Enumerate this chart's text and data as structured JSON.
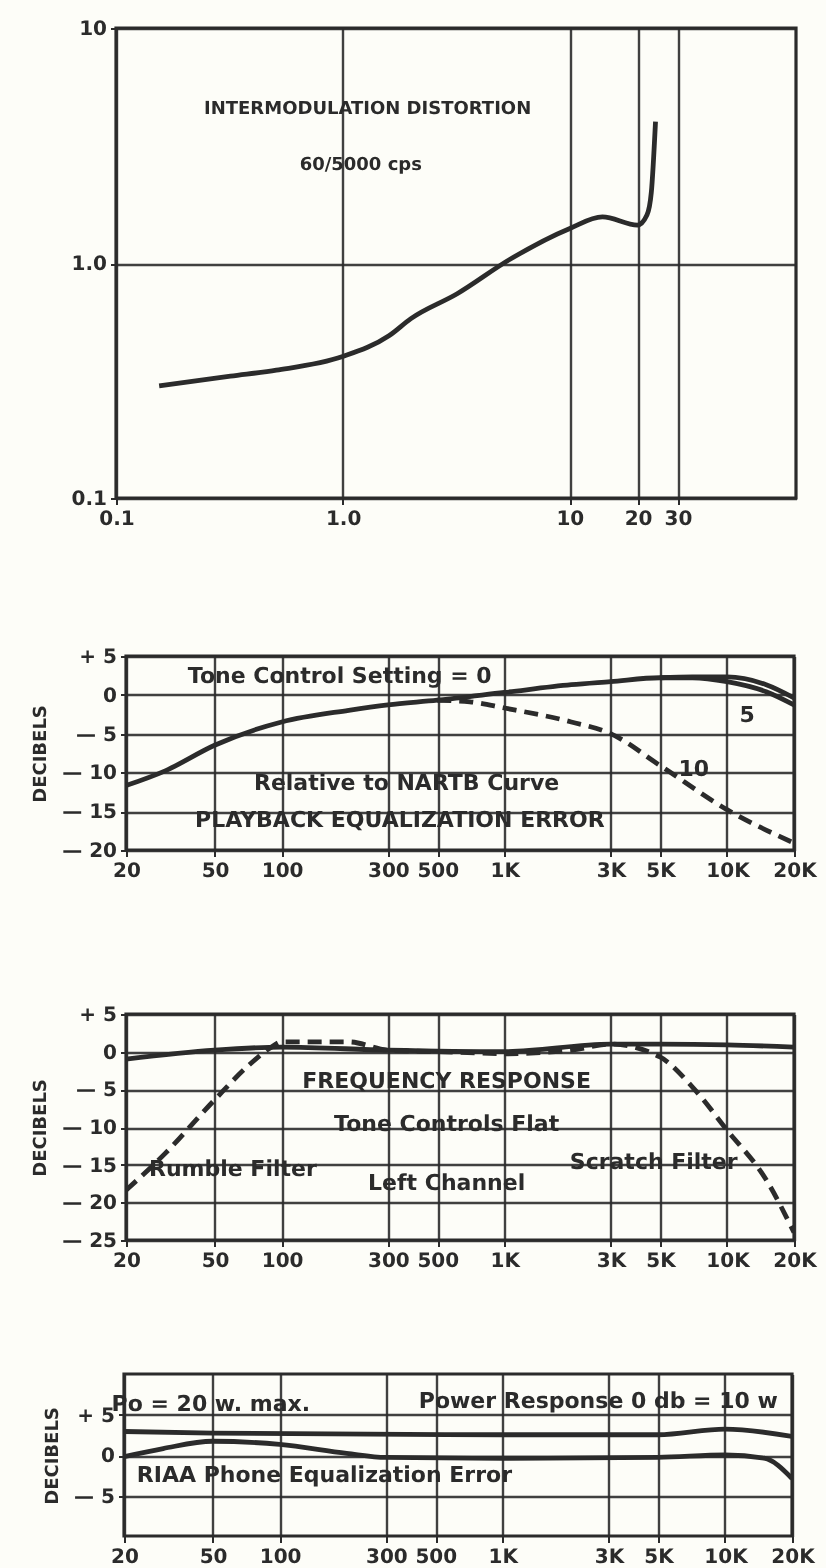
{
  "chart_data": [
    {
      "type": "line",
      "log": "xy",
      "xlim": [
        0.1,
        100
      ],
      "ylim": [
        0.1,
        10
      ],
      "xticks": [
        0.1,
        {
          "value": 1,
          "label": "1.0"
        },
        10,
        20,
        30
      ],
      "yticks": [
        0.1,
        {
          "value": 1,
          "label": "1.0"
        },
        10
      ],
      "grid": true,
      "annotations": [
        "INTERMODULATION DISTORTION",
        "60/5000 cps"
      ],
      "series": [
        {
          "color": "#2b2b2b",
          "x": [
            0.155,
            0.32,
            0.51,
            1.0,
            1.6,
            2.0,
            3.2,
            5.5,
            10,
            14,
            20,
            22,
            23,
            24
          ],
          "values": [
            0.3,
            0.33,
            0.35,
            0.4,
            0.49,
            0.58,
            0.74,
            1.04,
            1.4,
            1.57,
            1.45,
            1.6,
            2.0,
            4.0
          ]
        }
      ]
    },
    {
      "type": "line",
      "log": "x",
      "xlim": [
        20,
        20000
      ],
      "ylim": [
        -20,
        5
      ],
      "ylabel": "DECIBELS",
      "xticks": [
        20,
        50,
        100,
        300,
        500,
        {
          "value": 1000,
          "label": "1K"
        },
        {
          "value": 3000,
          "label": "3K"
        },
        {
          "value": 5000,
          "label": "5K"
        },
        {
          "value": 10000,
          "label": "10K"
        },
        {
          "value": 20000,
          "label": "20K"
        }
      ],
      "yticks": [
        {
          "value": 5,
          "label": "+ 5"
        },
        0,
        {
          "value": -5,
          "label": "— 5"
        },
        {
          "value": -10,
          "label": "— 10"
        },
        {
          "value": -15,
          "label": "— 15"
        },
        {
          "value": -20,
          "label": "— 20"
        }
      ],
      "grid": true,
      "annotations": [
        "Tone Control Setting = 0",
        "Relative to NARTB Curve",
        "PLAYBACK EQUALIZATION ERROR"
      ],
      "series": [
        {
          "color": "#2b2b2b",
          "x": [
            20,
            30,
            50,
            100,
            200,
            300,
            500,
            1000,
            2000,
            3000,
            5000,
            7000,
            10000,
            15000,
            20000
          ],
          "values": [
            -11.7,
            -9.8,
            -6.5,
            -3.5,
            -2.0,
            -1.3,
            -0.7,
            0.3,
            1.3,
            1.7,
            2.2,
            2.2,
            1.7,
            0.4,
            -1.3
          ]
        },
        {
          "name": "5",
          "color": "#2b2b2b",
          "x": [
            5000,
            7000,
            10000,
            15000,
            20000
          ],
          "values": [
            2.2,
            2.3,
            2.3,
            1.3,
            -0.4
          ]
        },
        {
          "name": "10",
          "color": "#2b2b2b",
          "line_style": "dashed",
          "x": [
            500,
            700,
            1000,
            2000,
            3000,
            5000,
            10000,
            20000
          ],
          "values": [
            -0.7,
            -0.9,
            -1.7,
            -3.5,
            -5.0,
            -9.1,
            -14.8,
            -19.1
          ]
        }
      ]
    },
    {
      "type": "line",
      "log": "x",
      "xlim": [
        20,
        20000
      ],
      "ylim": [
        -25,
        5
      ],
      "ylabel": "DECIBELS",
      "xticks": [
        20,
        50,
        100,
        300,
        500,
        {
          "value": 1000,
          "label": "1K"
        },
        {
          "value": 3000,
          "label": "3K"
        },
        {
          "value": 5000,
          "label": "5K"
        },
        {
          "value": 10000,
          "label": "10K"
        },
        {
          "value": 20000,
          "label": "20K"
        }
      ],
      "yticks": [
        {
          "value": 5,
          "label": "+ 5"
        },
        0,
        {
          "value": -5,
          "label": "— 5"
        },
        {
          "value": -10,
          "label": "— 10"
        },
        {
          "value": -15,
          "label": "— 15"
        },
        {
          "value": -20,
          "label": "— 20"
        },
        {
          "value": -25,
          "label": "— 25"
        }
      ],
      "grid": true,
      "annotations": [
        "FREQUENCY RESPONSE",
        "Tone Controls Flat",
        "Left Channel"
      ],
      "series": [
        {
          "color": "#2b2b2b",
          "x": [
            20,
            50,
            100,
            300,
            1000,
            3000,
            5000,
            10000,
            20000
          ],
          "values": [
            -1.0,
            0.2,
            0.6,
            0.2,
            0,
            1.0,
            1.0,
            0.9,
            0.6
          ]
        },
        {
          "name": "Rumble Filter",
          "color": "#2b2b2b",
          "line_style": "dashed",
          "x": [
            20,
            30,
            50,
            70,
            90,
            100,
            200,
            300,
            500,
            1000
          ],
          "values": [
            -18.4,
            -13.5,
            -6.4,
            -2.0,
            0.6,
            1.3,
            1.3,
            0.2,
            0,
            -0.3
          ]
        },
        {
          "name": "Scratch Filter",
          "color": "#2b2b2b",
          "line_style": "dashed",
          "x": [
            1000,
            2000,
            3000,
            5000,
            7000,
            10000,
            15000,
            20000
          ],
          "values": [
            -0.3,
            0.2,
            1.0,
            -0.7,
            -4.7,
            -10.4,
            -17,
            -24
          ]
        }
      ]
    },
    {
      "type": "line",
      "log": "x",
      "xlim": [
        20,
        20000
      ],
      "ylim": [
        -10,
        10
      ],
      "ylabel": "DECIBELS",
      "xticks": [
        20,
        50,
        100,
        300,
        500,
        {
          "value": 1000,
          "label": "1K"
        },
        {
          "value": 3000,
          "label": "3K"
        },
        {
          "value": 5000,
          "label": "5K"
        },
        {
          "value": 10000,
          "label": "10K"
        },
        {
          "value": 20000,
          "label": "20K"
        }
      ],
      "yticks": [
        {
          "value": 5,
          "label": "+ 5"
        },
        0,
        {
          "value": -5,
          "label": "— 5"
        }
      ],
      "grid": true,
      "annotations": [
        "Po = 20 w. max.",
        "Power Response 0 db = 10 w",
        "RIAA Phone Equalization Error"
      ],
      "series": [
        {
          "color": "#2b2b2b",
          "x": [
            20,
            50,
            1000,
            5000,
            10000,
            20000
          ],
          "values": [
            2.9,
            2.7,
            2.5,
            2.5,
            3.2,
            2.3
          ]
        },
        {
          "color": "#2b2b2b",
          "x": [
            20,
            30,
            50,
            100,
            200,
            300,
            1000,
            5000,
            10000,
            15000,
            20000
          ],
          "values": [
            -0.2,
            0.8,
            1.7,
            1.3,
            0.2,
            -0.3,
            -0.4,
            -0.3,
            0,
            -0.4,
            -2.9
          ]
        }
      ]
    }
  ]
}
